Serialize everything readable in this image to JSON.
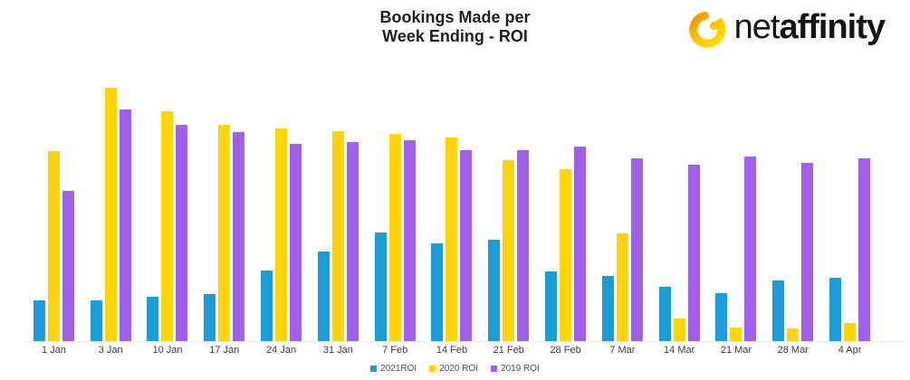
{
  "header": {
    "title_line1": "Bookings Made per",
    "title_line2": "Week Ending - ROI"
  },
  "logo": {
    "text_regular": "net",
    "text_bold": "affinity",
    "icon": "netaffinity-swirl-icon",
    "icon_gradient": [
      "#EF9100",
      "#FFC400",
      "#FFE000"
    ],
    "text_color": "#141414"
  },
  "chart_data": {
    "type": "bar",
    "title": "Bookings Made per Week Ending - ROI",
    "categories": [
      "1 Jan",
      "3 Jan",
      "10 Jan",
      "17 Jan",
      "24 Jan",
      "31 Jan",
      "7 Feb",
      "14 Feb",
      "21 Feb",
      "28 Feb",
      "7 Mar",
      "14 Mar",
      "21 Mar",
      "28 Mar",
      "4 Apr"
    ],
    "series": [
      {
        "name": "2021ROI",
        "color": "#1B9DD9",
        "values": [
          16.0,
          16.0,
          17.4,
          18.5,
          27.8,
          35.2,
          42.7,
          38.4,
          39.9,
          27.4,
          25.6,
          21.4,
          18.9,
          23.8,
          24.9
        ]
      },
      {
        "name": "2020 ROI",
        "color": "#FFD40A",
        "values": [
          74.7,
          99.6,
          90.4,
          85.0,
          83.6,
          82.6,
          81.5,
          80.1,
          71.2,
          67.6,
          42.3,
          8.9,
          5.3,
          5.0,
          7.1
        ]
      },
      {
        "name": "2019 ROI",
        "color": "#A160EA",
        "values": [
          59.1,
          91.1,
          85.0,
          82.2,
          77.6,
          78.3,
          79.0,
          75.1,
          75.1,
          76.5,
          71.9,
          69.4,
          72.6,
          70.1,
          71.9
        ]
      }
    ],
    "xlabel": "",
    "ylabel": "",
    "ylim": [
      0,
      100
    ],
    "y_axis_visible": false,
    "grid": false,
    "legend_position": "bottom",
    "background": "#ffffff"
  }
}
